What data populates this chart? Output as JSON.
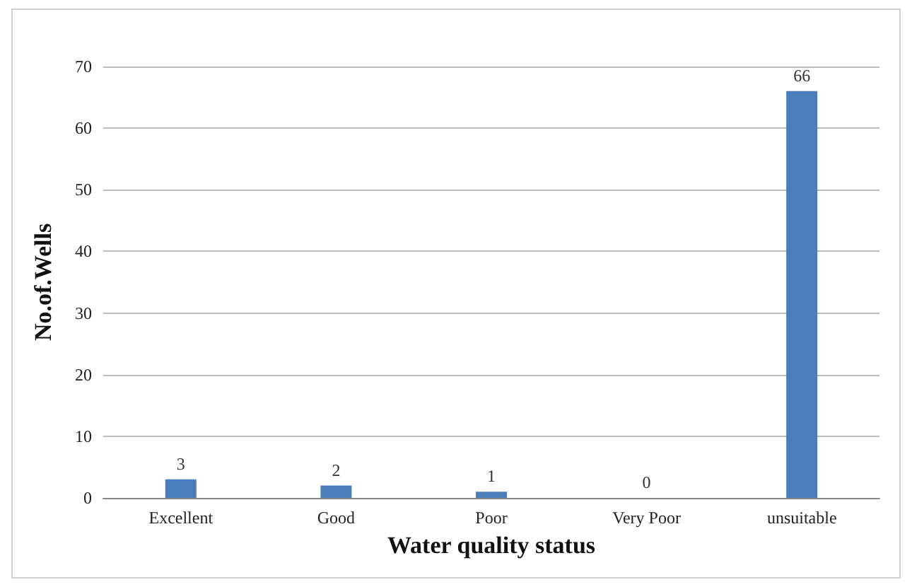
{
  "chart_data": {
    "type": "bar",
    "xlabel": "Water quality status",
    "ylabel": "No.of.Wells",
    "categories": [
      "Excellent",
      "Good",
      "Poor",
      "Very Poor",
      "unsuitable"
    ],
    "values": [
      3,
      2,
      1,
      0,
      66
    ],
    "color": "#4a7ebb",
    "data_labels": true,
    "ylim": [
      0,
      70
    ],
    "yticks": [
      0,
      10,
      20,
      30,
      40,
      50,
      60,
      70
    ],
    "grid": "y"
  }
}
